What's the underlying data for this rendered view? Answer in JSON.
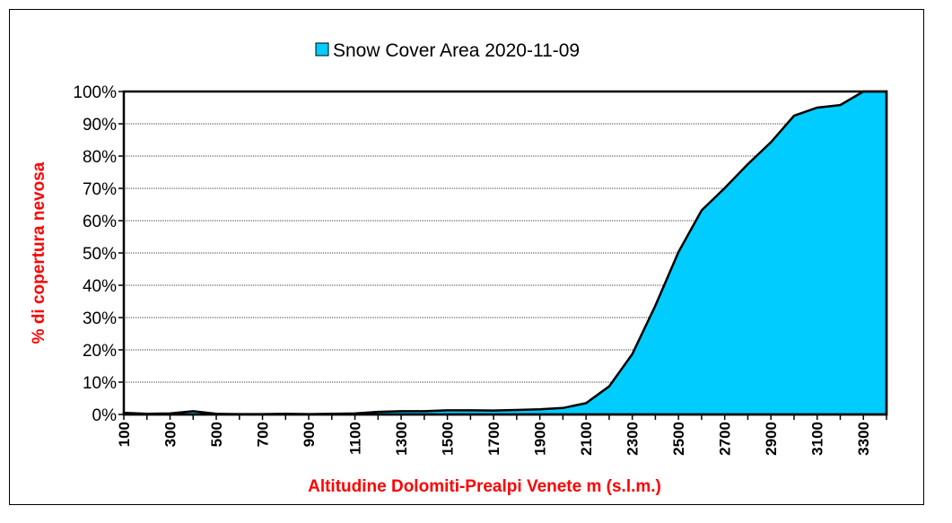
{
  "chart_data": {
    "type": "area",
    "legend": {
      "label": "Snow Cover Area 2020-11-09",
      "placement": "top-center"
    },
    "xlabel": "Altitudine Dolomiti-Prealpi Venete m (s.l.m.)",
    "ylabel": "% di copertura nevosa",
    "xlim": [
      100,
      3400
    ],
    "ylim": [
      0,
      100
    ],
    "x_ticks": [
      100,
      300,
      500,
      700,
      900,
      1100,
      1300,
      1500,
      1700,
      1900,
      2100,
      2300,
      2500,
      2700,
      2900,
      3100,
      3300
    ],
    "y_ticks": [
      "0%",
      "10%",
      "20%",
      "30%",
      "40%",
      "50%",
      "60%",
      "70%",
      "80%",
      "90%",
      "100%"
    ],
    "grid": "horizontal",
    "x": [
      100,
      200,
      300,
      400,
      500,
      600,
      700,
      800,
      900,
      1000,
      1100,
      1200,
      1300,
      1400,
      1500,
      1600,
      1700,
      1800,
      1900,
      2000,
      2100,
      2200,
      2300,
      2400,
      2500,
      2600,
      2700,
      2800,
      2900,
      3000,
      3100,
      3200,
      3300,
      3400
    ],
    "values": [
      0.5,
      0.2,
      0.3,
      1.0,
      0.2,
      0.1,
      0.1,
      0.2,
      0.1,
      0.2,
      0.3,
      0.8,
      1.0,
      1.0,
      1.3,
      1.3,
      1.2,
      1.4,
      1.6,
      2.0,
      3.5,
      8.7,
      18.7,
      33.7,
      50.3,
      63.2,
      70.1,
      77.5,
      84.3,
      92.5,
      95.0,
      95.8,
      100,
      100
    ],
    "series_color": "#00CCFF",
    "axis_title_color": "#FF0000"
  }
}
